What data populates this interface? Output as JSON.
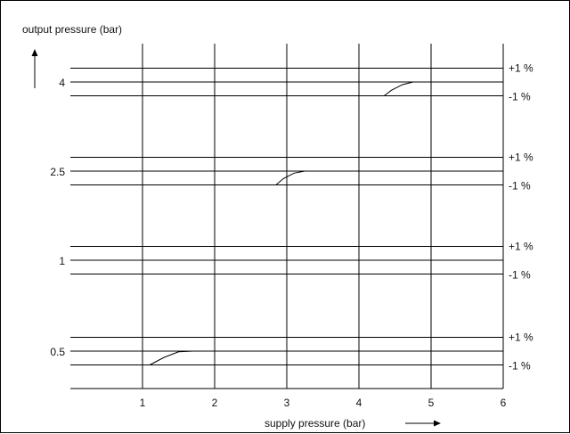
{
  "chart_data": {
    "type": "line",
    "xlabel": "supply pressure (bar)",
    "ylabel": "output pressure (bar)",
    "x_ticks": [
      "1",
      "2",
      "3",
      "4",
      "5",
      "6"
    ],
    "xlim": [
      0,
      6
    ],
    "grid": true,
    "bands": [
      {
        "y_label": "0.5",
        "plus_label": "+1 %",
        "minus_label": "-1 %",
        "curve": {
          "x": [
            1.1,
            1.3,
            1.5,
            1.7,
            1.8
          ],
          "y": [
            -1.0,
            -0.45,
            -0.05,
            0.0,
            0.0
          ]
        }
      },
      {
        "y_label": "1",
        "plus_label": "+1 %",
        "minus_label": "-1 %",
        "curve": null
      },
      {
        "y_label": "2.5",
        "plus_label": "+1 %",
        "minus_label": "-1 %",
        "curve": {
          "x": [
            2.85,
            2.95,
            3.1,
            3.25,
            3.35
          ],
          "y": [
            -1.0,
            -0.55,
            -0.15,
            0.0,
            0.0
          ]
        }
      },
      {
        "y_label": "4",
        "plus_label": "+1 %",
        "minus_label": "-1 %",
        "curve": {
          "x": [
            4.35,
            4.45,
            4.6,
            4.75,
            4.8
          ],
          "y": [
            -1.0,
            -0.6,
            -0.2,
            0.0,
            0.0
          ]
        }
      }
    ]
  }
}
